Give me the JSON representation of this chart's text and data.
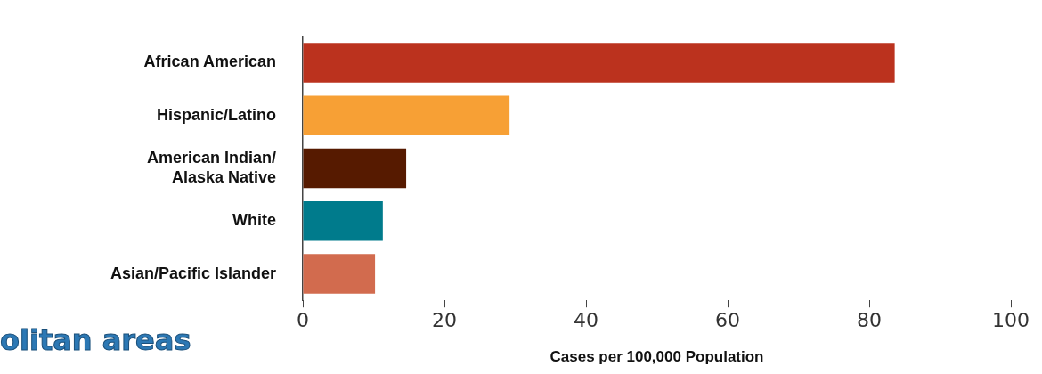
{
  "chart_data": {
    "type": "bar",
    "orientation": "horizontal",
    "xlabel": "Cases per 100,000 Population",
    "categories": [
      "African American",
      "Hispanic/Latino",
      "American Indian/\nAlaska Native",
      "White",
      "Asian/Pacific Islander"
    ],
    "values": [
      83.6,
      29.2,
      14.6,
      11.3,
      10.2
    ],
    "colors": [
      "#bb321e",
      "#f7a035",
      "#561a00",
      "#007b8c",
      "#d26b4e"
    ],
    "xlim": [
      0,
      100
    ],
    "xticks": [
      0,
      20,
      40,
      60,
      80,
      100
    ],
    "grid": false,
    "legend": false,
    "annotations": [
      "olitan areas"
    ]
  }
}
